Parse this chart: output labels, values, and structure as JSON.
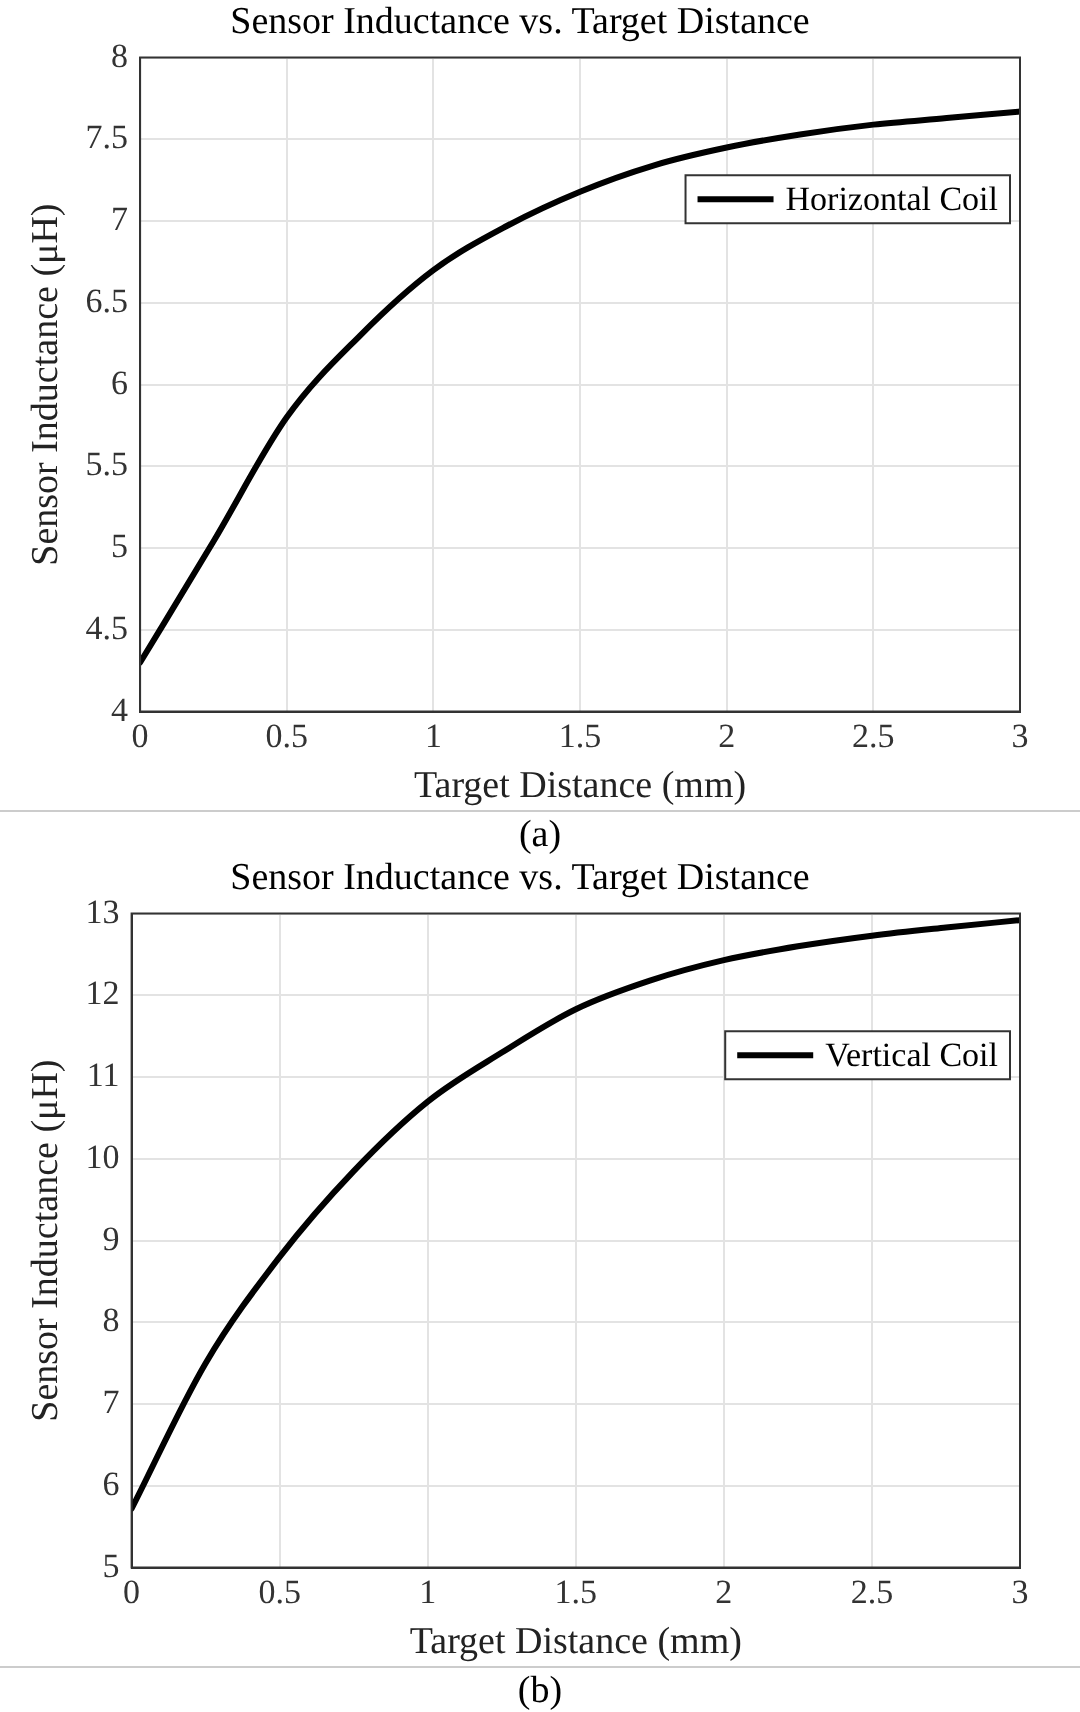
{
  "chart_data": [
    {
      "type": "line",
      "title": "Sensor Inductance vs. Target Distance",
      "xlabel": "Target Distance (mm)",
      "ylabel": "Sensor Inductance (μH)",
      "annotations": [
        "(a)"
      ],
      "x": [
        0,
        0.25,
        0.5,
        0.75,
        1,
        1.25,
        1.5,
        1.75,
        2,
        2.25,
        2.5,
        2.75,
        3
      ],
      "series": [
        {
          "name": "Horizontal Coil",
          "color": "#000000",
          "values": [
            4.3,
            5.04,
            5.8,
            6.3,
            6.7,
            6.97,
            7.18,
            7.34,
            7.45,
            7.53,
            7.59,
            7.63,
            7.67
          ]
        }
      ],
      "xlim": [
        0,
        3
      ],
      "xticks": [
        0,
        0.5,
        1,
        1.5,
        2,
        2.5,
        3
      ],
      "ylim": [
        4,
        8
      ],
      "yticks": [
        4,
        4.5,
        5,
        5.5,
        6,
        6.5,
        7,
        7.5,
        8
      ],
      "grid": true,
      "legend": "top right",
      "marker": "none",
      "line_style": "solid"
    },
    {
      "type": "line",
      "title": "Sensor Inductance vs. Target Distance",
      "xlabel": "Target Distance (mm)",
      "ylabel": "Sensor Inductance (μH)",
      "annotations": [
        "(b)"
      ],
      "x": [
        0,
        0.25,
        0.5,
        0.75,
        1,
        1.25,
        1.5,
        1.75,
        2,
        2.25,
        2.5,
        2.75,
        3
      ],
      "series": [
        {
          "name": "Vertical Coil",
          "color": "#000000",
          "values": [
            5.72,
            7.5,
            8.8,
            9.85,
            10.7,
            11.3,
            11.83,
            12.18,
            12.43,
            12.6,
            12.73,
            12.83,
            12.92
          ]
        }
      ],
      "xlim": [
        0,
        3
      ],
      "xticks": [
        0,
        0.5,
        1,
        1.5,
        2,
        2.5,
        3
      ],
      "ylim": [
        5,
        13
      ],
      "yticks": [
        5,
        6,
        7,
        8,
        9,
        10,
        11,
        12,
        13
      ],
      "grid": true,
      "legend": "top right",
      "marker": "none",
      "line_style": "solid"
    }
  ]
}
